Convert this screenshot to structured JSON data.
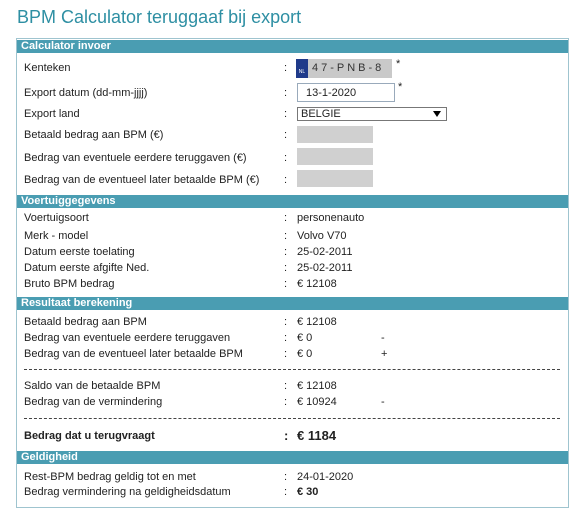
{
  "title": "BPM Calculator teruggaaf bij export",
  "separator": ":",
  "required_mark": "*",
  "sections": [
    {
      "header": "Calculator invoer",
      "rows": [
        {
          "label": "Kenteken",
          "country": "NL",
          "value": "47-PNB-8"
        },
        {
          "label": "Export datum (dd-mm-jjjj)",
          "value": "13-1-2020"
        },
        {
          "label": "Export land",
          "value": "BELGIE"
        },
        {
          "label": "Betaald bedrag aan BPM (€)"
        },
        {
          "label": "Bedrag van eventuele eerdere teruggaven (€)"
        },
        {
          "label": "Bedrag van de eventueel later betaalde BPM (€)"
        }
      ]
    },
    {
      "header": "Voertuiggegevens",
      "rows": [
        {
          "label": "Voertuigsoort",
          "value": "personenauto"
        },
        {
          "label": "Merk - model",
          "value": "Volvo V70"
        },
        {
          "label": "Datum eerste toelating",
          "value": "25-02-2011"
        },
        {
          "label": "Datum eerste afgifte Ned.",
          "value": "25-02-2011"
        },
        {
          "label": "Bruto BPM bedrag",
          "value": "€ 12108"
        }
      ]
    },
    {
      "header": "Resultaat berekening",
      "rows": [
        {
          "label": "Betaald bedrag aan BPM",
          "value": "€ 12108"
        },
        {
          "label": "Bedrag van eventuele eerdere teruggaven",
          "value": "€ 0",
          "sign": "-"
        },
        {
          "label": "Bedrag van de eventueel later betaalde BPM",
          "value": "€ 0",
          "sign": "+"
        },
        {
          "label": "Saldo van de betaalde BPM",
          "value": "€ 12108"
        },
        {
          "label": "Bedrag van de vermindering",
          "value": "€ 10924",
          "sign": "-"
        },
        {
          "label": "Bedrag dat u terugvraagt",
          "value": "€ 1184"
        }
      ]
    },
    {
      "header": "Geldigheid",
      "rows": [
        {
          "label": "Rest-BPM bedrag geldig tot en met",
          "value": "24-01-2020"
        },
        {
          "label": "Bedrag vermindering na geldigheidsdatum",
          "value": "€ 30"
        }
      ]
    }
  ]
}
